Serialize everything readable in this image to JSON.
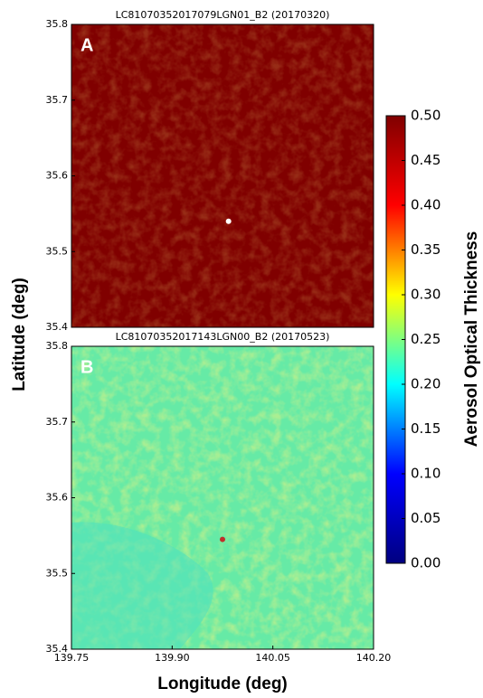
{
  "chart_data": [
    {
      "type": "heatmap",
      "title": "LC81070352017079LGN01_B2 (20170320)",
      "panel_label": "A",
      "xlim": [
        139.75,
        140.2
      ],
      "ylim": [
        35.4,
        35.8
      ],
      "yticks": [
        35.4,
        35.5,
        35.6,
        35.7,
        35.8
      ],
      "color": "#800000",
      "points": [
        {
          "x": 139.984,
          "y": 35.54,
          "color": "#ffffff"
        }
      ]
    },
    {
      "type": "heatmap",
      "title": "LC81070352017143LGN00_B2 (20170523)",
      "panel_label": "B",
      "xlim": [
        139.75,
        140.2
      ],
      "ylim": [
        35.4,
        35.8
      ],
      "yticks": [
        35.4,
        35.5,
        35.6,
        35.7,
        35.8
      ],
      "xticks": [
        139.75,
        {
          "value": 139.9,
          "label": "139.90"
        },
        140.05,
        {
          "value": 140.2,
          "label": "140.20"
        }
      ],
      "color": "#66eaa6",
      "points": [
        {
          "x": 139.975,
          "y": 35.545,
          "color": "#c0302a"
        }
      ]
    }
  ],
  "figure": {
    "ylabel": "Latitude (deg)",
    "xlabel": "Longitude (deg)",
    "colorbar": {
      "label": "Aerosol Optical Thickness",
      "clim": [
        0,
        0.5
      ],
      "cmap_colors": [
        "#000080",
        "#0000ff",
        "#00ffff",
        "#ffff00",
        "#ff0000",
        "#800000"
      ],
      "ticks": [
        {
          "value": 0,
          "label": "0.00"
        },
        {
          "value": 0.05,
          "label": "0.05"
        },
        {
          "value": 0.1,
          "label": "0.10"
        },
        {
          "value": 0.15,
          "label": "0.15"
        },
        {
          "value": 0.2,
          "label": "0.20"
        },
        {
          "value": 0.25,
          "label": "0.25"
        },
        {
          "value": 0.3,
          "label": "0.30"
        },
        {
          "value": 0.35,
          "label": "0.35"
        },
        {
          "value": 0.4,
          "label": "0.40"
        },
        {
          "value": 0.45,
          "label": "0.45"
        },
        {
          "value": 0.5,
          "label": "0.50"
        }
      ]
    }
  }
}
